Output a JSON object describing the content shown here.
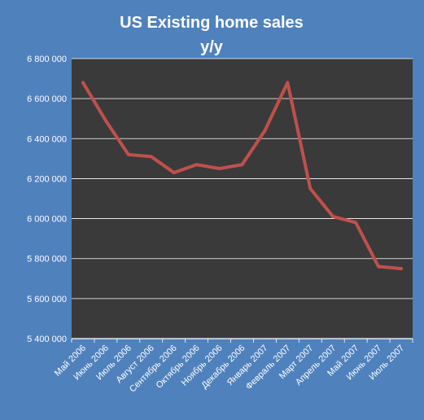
{
  "chart_data": {
    "type": "line",
    "title": "US Existing home sales",
    "subtitle": "y/y",
    "xlabel": "",
    "ylabel": "",
    "categories": [
      "Май 2006",
      "Июнь 2006",
      "Июль 2006",
      "Август 2006",
      "Сентябрь 2006",
      "Октябрь 2006",
      "Ноябрь 2006",
      "Декабрь 2006",
      "Январь 2007",
      "Февраль 2007",
      "Март 2007",
      "Апрель 2007",
      "Май 2007",
      "Июнь 2007",
      "Июль 2007"
    ],
    "series": [
      {
        "name": "",
        "values": [
          6680000,
          6490000,
          6320000,
          6310000,
          6230000,
          6270000,
          6250000,
          6270000,
          6440000,
          6680000,
          6150000,
          6010000,
          5980000,
          5760000,
          5750000
        ]
      }
    ],
    "ylim": [
      5400000,
      6800000
    ],
    "yticks": [
      "5 400 000",
      "5 600 000",
      "5 800 000",
      "6 000 000",
      "6 200 000",
      "6 400 000",
      "6 600 000",
      "6 800 000"
    ],
    "ytick_values": [
      5400000,
      5600000,
      5800000,
      6000000,
      6200000,
      6400000,
      6600000,
      6800000
    ],
    "grid": true,
    "legend": "none",
    "colors": {
      "background": "#4f81bd",
      "plot_area": "#3a3a3a",
      "line": "#c0504d",
      "grid": "#ffffff",
      "text": "#ffffff"
    }
  }
}
